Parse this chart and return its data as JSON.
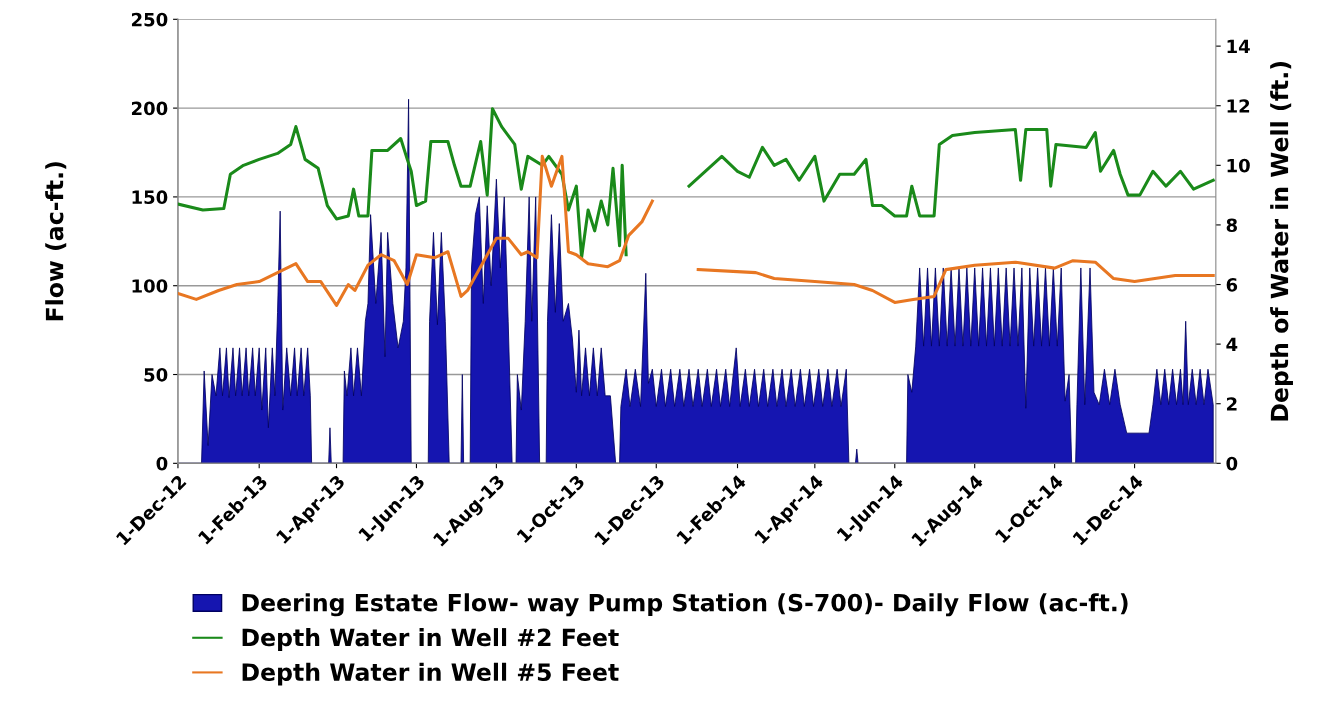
{
  "chart_data": {
    "type": "area",
    "ylabel": "Flow (ac-ft.)",
    "y2label": "Depth of Water in Well (ft.)",
    "xlim": [
      "2012-12-01",
      "2015-02-01"
    ],
    "xticks": [
      {
        "value": "2012-12-01",
        "label": "1-Dec-12"
      },
      {
        "value": "2013-02-01",
        "label": "1-Feb-13"
      },
      {
        "value": "2013-04-01",
        "label": "1-Apr-13"
      },
      {
        "value": "2013-06-01",
        "label": "1-Jun-13"
      },
      {
        "value": "2013-08-01",
        "label": "1-Aug-13"
      },
      {
        "value": "2013-10-01",
        "label": "1-Oct-13"
      },
      {
        "value": "2013-12-01",
        "label": "1-Dec-13"
      },
      {
        "value": "2014-02-01",
        "label": "1-Feb-14"
      },
      {
        "value": "2014-04-01",
        "label": "1-Apr-14"
      },
      {
        "value": "2014-06-01",
        "label": "1-Jun-14"
      },
      {
        "value": "2014-08-01",
        "label": "1-Aug-14"
      },
      {
        "value": "2014-10-01",
        "label": "1-Oct-14"
      },
      {
        "value": "2014-12-01",
        "label": "1-Dec-14"
      }
    ],
    "ylim": [
      0,
      250
    ],
    "yticks": [
      0,
      50,
      100,
      150,
      200,
      250
    ],
    "y2lim": [
      0,
      14.9
    ],
    "y2ticks": [
      0,
      2,
      4,
      6,
      8,
      10,
      12,
      14
    ],
    "grid": "y",
    "legend": "bottom",
    "series": [
      {
        "name": "Deering Estate Flow- way Pump Station (S-700)- Daily Flow (ac-ft.)",
        "color": "#1515b0",
        "x": [
          "2012-12-01",
          "2012-12-19",
          "2012-12-21",
          "2012-12-24",
          "2012-12-27",
          "2012-12-30",
          "2013-01-02",
          "2013-01-04",
          "2013-01-07",
          "2013-01-09",
          "2013-01-12",
          "2013-01-14",
          "2013-01-17",
          "2013-01-19",
          "2013-01-22",
          "2013-01-24",
          "2013-01-27",
          "2013-01-29",
          "2013-02-01",
          "2013-02-03",
          "2013-02-06",
          "2013-02-08",
          "2013-02-11",
          "2013-02-13",
          "2013-02-15",
          "2013-02-17",
          "2013-02-19",
          "2013-02-22",
          "2013-02-25",
          "2013-02-28",
          "2013-03-02",
          "2013-03-05",
          "2013-03-07",
          "2013-03-10",
          "2013-03-12",
          "2013-03-13",
          "2013-03-26",
          "2013-03-27",
          "2013-03-28",
          "2013-04-06",
          "2013-04-07",
          "2013-04-09",
          "2013-04-12",
          "2013-04-14",
          "2013-04-17",
          "2013-04-20",
          "2013-04-23",
          "2013-04-25",
          "2013-04-27",
          "2013-05-01",
          "2013-05-05",
          "2013-05-08",
          "2013-05-10",
          "2013-05-14",
          "2013-05-18",
          "2013-05-22",
          "2013-05-24",
          "2013-05-26",
          "2013-05-28",
          "2013-06-10",
          "2013-06-11",
          "2013-06-14",
          "2013-06-17",
          "2013-06-20",
          "2013-06-23",
          "2013-06-26",
          "2013-07-05",
          "2013-07-06",
          "2013-07-07",
          "2013-07-12",
          "2013-07-13",
          "2013-07-16",
          "2013-07-19",
          "2013-07-22",
          "2013-07-25",
          "2013-07-28",
          "2013-08-01",
          "2013-08-04",
          "2013-08-07",
          "2013-08-10",
          "2013-08-13",
          "2013-08-16",
          "2013-08-17",
          "2013-08-20",
          "2013-08-23",
          "2013-08-26",
          "2013-08-28",
          "2013-08-31",
          "2013-09-03",
          "2013-09-08",
          "2013-09-09",
          "2013-09-12",
          "2013-09-15",
          "2013-09-18",
          "2013-09-21",
          "2013-09-25",
          "2013-09-28",
          "2013-10-01",
          "2013-10-03",
          "2013-10-05",
          "2013-10-08",
          "2013-10-11",
          "2013-10-14",
          "2013-10-17",
          "2013-10-20",
          "2013-10-23",
          "2013-10-27",
          "2013-10-31",
          "2013-11-03",
          "2013-11-04",
          "2013-11-08",
          "2013-11-11",
          "2013-11-15",
          "2013-11-19",
          "2013-11-23",
          "2013-11-25",
          "2013-11-28",
          "2013-12-01",
          "2013-12-05",
          "2013-12-08",
          "2013-12-12",
          "2013-12-15",
          "2013-12-19",
          "2013-12-22",
          "2013-12-26",
          "2013-12-29",
          "2014-01-02",
          "2014-01-05",
          "2014-01-09",
          "2014-01-12",
          "2014-01-16",
          "2014-01-19",
          "2014-01-23",
          "2014-01-26",
          "2014-01-31",
          "2014-02-03",
          "2014-02-07",
          "2014-02-10",
          "2014-02-14",
          "2014-02-17",
          "2014-02-21",
          "2014-02-24",
          "2014-02-28",
          "2014-03-03",
          "2014-03-07",
          "2014-03-10",
          "2014-03-14",
          "2014-03-17",
          "2014-03-21",
          "2014-03-24",
          "2014-03-28",
          "2014-03-31",
          "2014-04-04",
          "2014-04-07",
          "2014-04-11",
          "2014-04-14",
          "2014-04-18",
          "2014-04-21",
          "2014-04-25",
          "2014-04-27",
          "2014-05-02",
          "2014-05-03",
          "2014-05-04",
          "2014-06-10",
          "2014-06-11",
          "2014-06-14",
          "2014-06-17",
          "2014-06-20",
          "2014-06-23",
          "2014-06-26",
          "2014-06-29",
          "2014-07-02",
          "2014-07-05",
          "2014-07-08",
          "2014-07-11",
          "2014-07-14",
          "2014-07-17",
          "2014-07-20",
          "2014-07-23",
          "2014-07-26",
          "2014-07-29",
          "2014-08-01",
          "2014-08-04",
          "2014-08-07",
          "2014-08-10",
          "2014-08-13",
          "2014-08-16",
          "2014-08-19",
          "2014-08-22",
          "2014-08-25",
          "2014-08-28",
          "2014-08-31",
          "2014-09-03",
          "2014-09-06",
          "2014-09-09",
          "2014-09-12",
          "2014-09-15",
          "2014-09-18",
          "2014-09-21",
          "2014-09-24",
          "2014-09-27",
          "2014-09-30",
          "2014-10-03",
          "2014-10-06",
          "2014-10-09",
          "2014-10-12",
          "2014-10-14",
          "2014-10-17",
          "2014-10-18",
          "2014-10-21",
          "2014-10-24",
          "2014-10-28",
          "2014-10-31",
          "2014-11-04",
          "2014-11-08",
          "2014-11-12",
          "2014-11-16",
          "2014-11-20",
          "2014-11-25",
          "2014-12-05",
          "2014-12-12",
          "2014-12-15",
          "2014-12-18",
          "2014-12-21",
          "2014-12-24",
          "2014-12-27",
          "2014-12-30",
          "2015-01-02",
          "2015-01-05",
          "2015-01-07",
          "2015-01-09",
          "2015-01-11",
          "2015-01-14",
          "2015-01-17",
          "2015-01-20",
          "2015-01-23",
          "2015-01-26",
          "2015-01-30"
        ],
        "values": [
          0,
          0,
          52,
          10,
          50,
          38,
          65,
          38,
          65,
          37,
          65,
          38,
          65,
          38,
          65,
          38,
          65,
          38,
          65,
          30,
          65,
          20,
          65,
          38,
          85,
          142,
          30,
          65,
          38,
          65,
          38,
          65,
          38,
          65,
          38,
          0,
          0,
          20,
          0,
          0,
          52,
          38,
          65,
          38,
          65,
          38,
          80,
          90,
          140,
          90,
          130,
          60,
          130,
          90,
          65,
          80,
          110,
          205,
          0,
          0,
          80,
          130,
          78,
          130,
          80,
          0,
          0,
          50,
          0,
          0,
          110,
          140,
          150,
          90,
          145,
          100,
          160,
          110,
          150,
          80,
          0,
          0,
          50,
          30,
          80,
          150,
          80,
          150,
          0,
          0,
          80,
          140,
          85,
          135,
          80,
          90,
          70,
          40,
          75,
          38,
          65,
          38,
          65,
          38,
          65,
          38,
          38,
          0,
          0,
          32,
          53,
          32,
          53,
          32,
          107,
          45,
          53,
          32,
          53,
          32,
          53,
          32,
          53,
          32,
          53,
          32,
          53,
          32,
          53,
          32,
          53,
          32,
          53,
          32,
          65,
          32,
          53,
          32,
          53,
          32,
          53,
          32,
          53,
          32,
          53,
          32,
          53,
          32,
          53,
          32,
          53,
          32,
          53,
          32,
          53,
          32,
          53,
          32,
          53,
          0,
          0,
          8,
          0,
          0,
          50,
          40,
          66,
          110,
          66,
          110,
          66,
          110,
          66,
          110,
          66,
          110,
          66,
          110,
          66,
          110,
          66,
          110,
          66,
          110,
          66,
          110,
          66,
          110,
          66,
          110,
          66,
          110,
          66,
          110,
          31,
          110,
          66,
          110,
          66,
          110,
          66,
          110,
          66,
          110,
          35,
          50,
          0,
          0,
          33,
          110,
          33,
          110,
          40,
          33,
          53,
          33,
          53,
          33,
          17,
          17,
          17,
          33,
          53,
          33,
          53,
          33,
          53,
          33,
          53,
          33,
          80,
          33,
          53,
          33,
          53,
          33,
          53,
          33
        ]
      },
      {
        "name": "Depth Water in Well #2 Feet",
        "type": "line",
        "axis": "y2",
        "color": "#1a8a1a",
        "x": [
          "2012-12-01",
          "2012-12-20",
          "2013-01-05",
          "2013-01-10",
          "2013-01-20",
          "2013-02-01",
          "2013-02-15",
          "2013-02-25",
          "2013-03-01",
          "2013-03-08",
          "2013-03-18",
          "2013-03-25",
          "2013-04-01",
          "2013-04-10",
          "2013-04-14",
          "2013-04-18",
          "2013-04-25",
          "2013-04-28",
          "2013-05-10",
          "2013-05-20",
          "2013-05-25",
          "2013-05-28",
          "2013-06-01",
          "2013-06-08",
          "2013-06-12",
          "2013-06-25",
          "2013-06-30",
          "2013-07-05",
          "2013-07-12",
          "2013-07-20",
          "2013-07-25",
          "2013-07-29",
          "2013-08-05",
          "2013-08-15",
          "2013-08-20",
          "2013-08-25",
          "2013-09-05",
          "2013-09-10",
          "2013-09-20",
          "2013-09-25",
          "2013-10-01",
          "2013-10-05",
          "2013-10-10",
          "2013-10-15",
          "2013-10-20",
          "2013-10-25",
          "2013-10-29",
          "2013-11-03",
          "2013-11-05",
          "2013-11-08",
          "2013-12-15",
          "2013-12-26",
          "2014-01-20",
          "2014-02-01",
          "2014-02-10",
          "2014-02-20",
          "2014-03-01",
          "2014-03-10",
          "2014-03-20",
          "2014-04-01",
          "2014-04-08",
          "2014-04-20",
          "2014-05-01",
          "2014-05-10",
          "2014-05-15",
          "2014-05-22",
          "2014-06-01",
          "2014-06-10",
          "2014-06-14",
          "2014-06-20",
          "2014-07-01",
          "2014-07-05",
          "2014-07-15",
          "2014-08-01",
          "2014-09-01",
          "2014-09-05",
          "2014-09-09",
          "2014-09-25",
          "2014-09-28",
          "2014-10-02",
          "2014-10-25",
          "2014-11-01",
          "2014-11-05",
          "2014-11-15",
          "2014-11-20",
          "2014-11-26",
          "2014-12-05",
          "2014-12-15",
          "2014-12-25",
          "2015-01-05",
          "2015-01-15",
          "2015-01-30"
        ],
        "values": [
          8.7,
          8.5,
          8.55,
          9.7,
          10.0,
          10.2,
          10.4,
          10.7,
          11.3,
          10.2,
          9.9,
          8.65,
          8.2,
          8.3,
          9.2,
          8.3,
          8.3,
          10.5,
          10.5,
          10.9,
          10.2,
          9.8,
          8.65,
          8.8,
          10.8,
          10.8,
          10.0,
          9.3,
          9.3,
          10.8,
          9.0,
          11.9,
          11.3,
          10.7,
          9.2,
          10.3,
          10.0,
          10.3,
          9.7,
          8.5,
          9.3,
          6.9,
          8.5,
          7.8,
          8.8,
          8.0,
          9.9,
          7.3,
          10.0,
          7.0,
          null,
          9.3,
          10.3,
          9.8,
          9.6,
          10.6,
          10.0,
          10.2,
          9.5,
          10.3,
          8.8,
          9.7,
          9.7,
          10.2,
          8.65,
          8.65,
          8.3,
          8.3,
          9.3,
          8.3,
          8.3,
          10.7,
          11.0,
          11.1,
          11.2,
          9.5,
          11.2,
          11.2,
          9.3,
          10.7,
          10.6,
          11.1,
          9.8,
          10.5,
          9.7,
          9.0,
          9.0,
          9.8,
          9.3,
          9.8,
          9.2,
          9.5
        ]
      },
      {
        "name": "Depth Water in Well #5 Feet",
        "type": "line",
        "axis": "y2",
        "color": "#e87722",
        "x": [
          "2012-12-01",
          "2012-12-15",
          "2013-01-01",
          "2013-01-15",
          "2013-02-01",
          "2013-02-15",
          "2013-03-01",
          "2013-03-10",
          "2013-03-20",
          "2013-04-01",
          "2013-04-10",
          "2013-04-15",
          "2013-04-25",
          "2013-05-05",
          "2013-05-15",
          "2013-05-25",
          "2013-06-01",
          "2013-06-15",
          "2013-06-25",
          "2013-07-05",
          "2013-07-10",
          "2013-07-20",
          "2013-08-01",
          "2013-08-10",
          "2013-08-20",
          "2013-08-25",
          "2013-09-01",
          "2013-09-05",
          "2013-09-12",
          "2013-09-20",
          "2013-09-25",
          "2013-10-01",
          "2013-10-10",
          "2013-10-25",
          "2013-11-03",
          "2013-11-10",
          "2013-11-20",
          "2013-11-28",
          "2013-12-20",
          "2014-01-02",
          "2014-02-15",
          "2014-03-01",
          "2014-04-01",
          "2014-05-01",
          "2014-05-15",
          "2014-06-01",
          "2014-06-15",
          "2014-07-01",
          "2014-07-10",
          "2014-08-01",
          "2014-09-01",
          "2014-10-01",
          "2014-10-15",
          "2014-11-01",
          "2014-11-15",
          "2014-12-01",
          "2015-01-01",
          "2015-01-30"
        ],
        "values": [
          5.7,
          5.5,
          5.8,
          6.0,
          6.1,
          6.4,
          6.7,
          6.1,
          6.1,
          5.3,
          6.0,
          5.8,
          6.65,
          7.0,
          6.8,
          6.0,
          7.0,
          6.9,
          7.1,
          5.6,
          5.8,
          6.6,
          7.55,
          7.55,
          7.0,
          7.1,
          6.9,
          10.3,
          9.3,
          10.3,
          7.1,
          7.0,
          6.7,
          6.6,
          6.8,
          7.65,
          8.1,
          8.8,
          null,
          6.5,
          6.4,
          6.2,
          6.1,
          6.0,
          5.8,
          5.4,
          5.5,
          5.6,
          6.5,
          6.65,
          6.75,
          6.55,
          6.8,
          6.75,
          6.2,
          6.1,
          6.3,
          6.3
        ]
      }
    ]
  }
}
